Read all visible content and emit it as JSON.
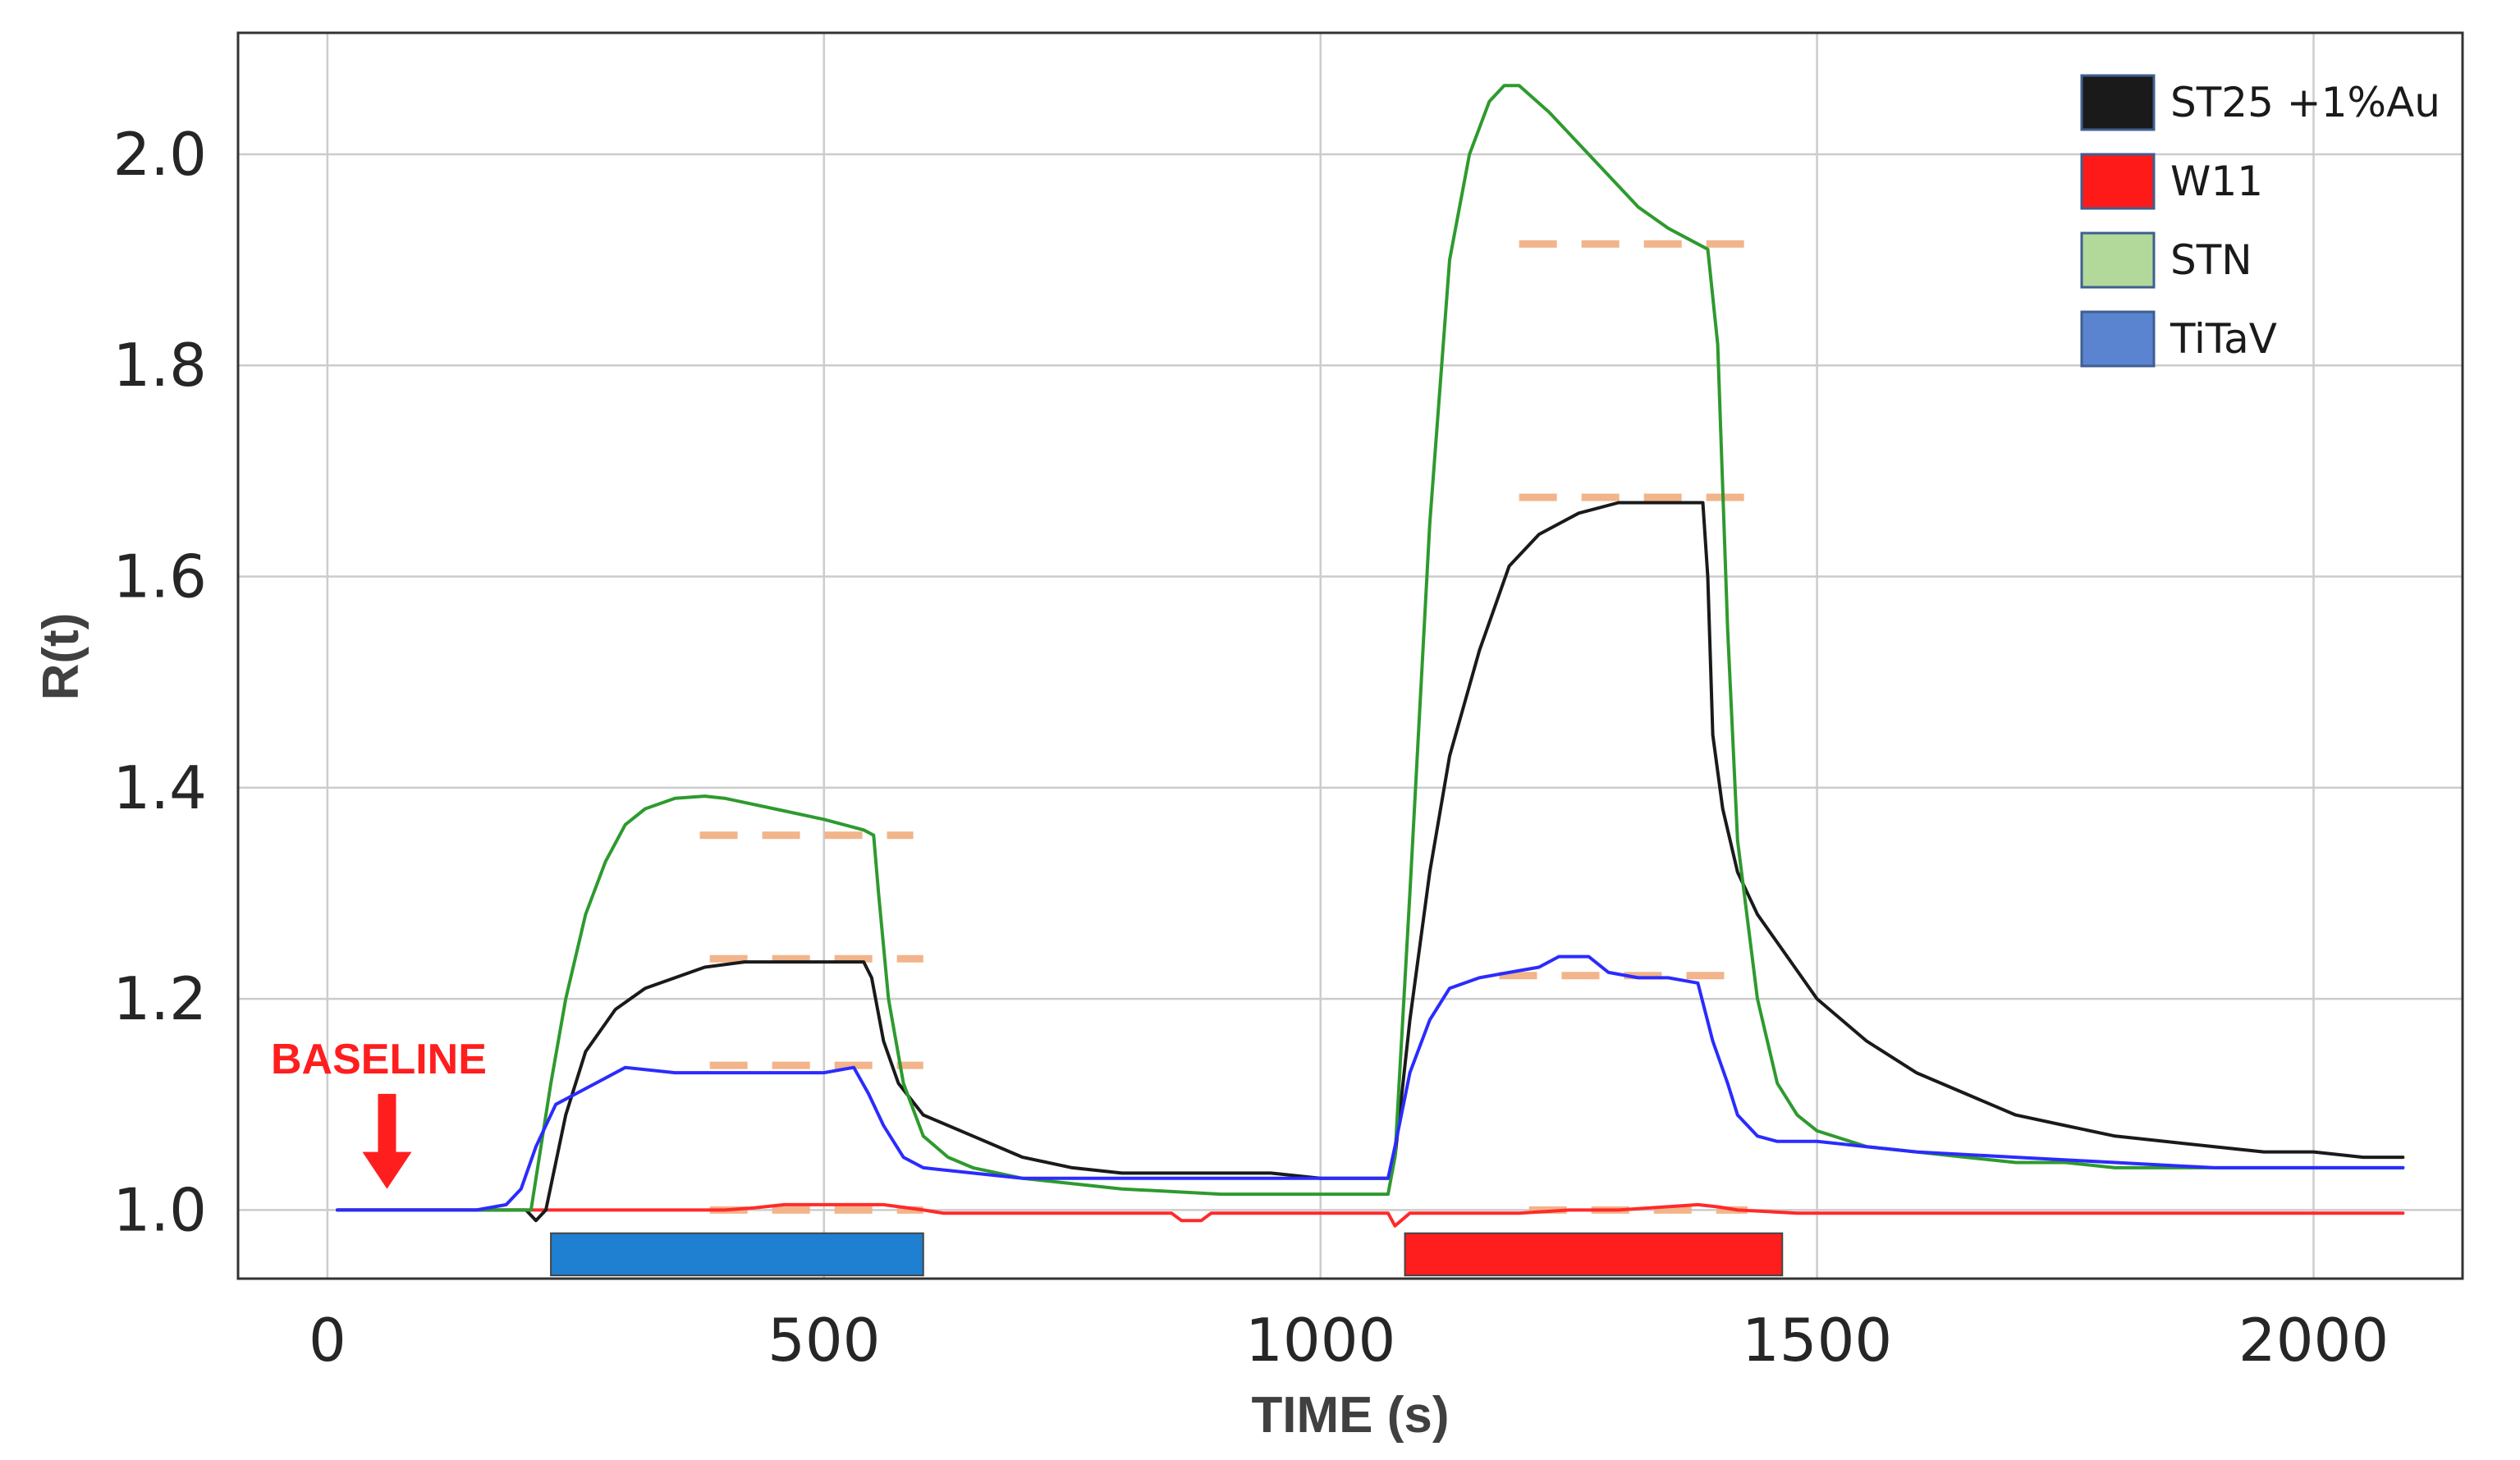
{
  "chart_data": {
    "type": "line",
    "xlabel": "TIME (s)",
    "ylabel": "R(t)",
    "xlim": [
      -90,
      2150
    ],
    "ylim": [
      0.935,
      2.115
    ],
    "xticks": [
      0,
      500,
      1000,
      1500,
      2000
    ],
    "yticks": [
      1.0,
      1.2,
      1.4,
      1.6,
      1.8,
      2.0
    ],
    "ytick_labels": [
      "1.0",
      "1.2",
      "1.4",
      "1.6",
      "1.8",
      "2.0"
    ],
    "grid": true,
    "legend_position": "top-right",
    "series": [
      {
        "name": "ST25 +1%Au",
        "color": "#1a1a1a",
        "swatch": "#1a1a1a",
        "x": [
          10,
          150,
          185,
          200,
          210,
          220,
          240,
          260,
          290,
          320,
          350,
          380,
          420,
          460,
          500,
          540,
          548,
          560,
          575,
          600,
          650,
          700,
          750,
          800,
          850,
          900,
          950,
          1000,
          1050,
          1068,
          1075,
          1090,
          1110,
          1130,
          1160,
          1190,
          1220,
          1260,
          1300,
          1340,
          1370,
          1385,
          1390,
          1395,
          1405,
          1420,
          1440,
          1470,
          1500,
          1550,
          1600,
          1650,
          1700,
          1750,
          1800,
          1850,
          1900,
          1950,
          2000,
          2050,
          2090
        ],
        "y": [
          1.0,
          1.0,
          1.0,
          1.0,
          0.99,
          1.0,
          1.09,
          1.15,
          1.19,
          1.21,
          1.22,
          1.23,
          1.235,
          1.235,
          1.235,
          1.235,
          1.22,
          1.16,
          1.12,
          1.09,
          1.07,
          1.05,
          1.04,
          1.035,
          1.035,
          1.035,
          1.035,
          1.03,
          1.03,
          1.03,
          1.05,
          1.18,
          1.32,
          1.43,
          1.53,
          1.61,
          1.64,
          1.66,
          1.67,
          1.67,
          1.67,
          1.67,
          1.6,
          1.45,
          1.38,
          1.32,
          1.28,
          1.24,
          1.2,
          1.16,
          1.13,
          1.11,
          1.09,
          1.08,
          1.07,
          1.065,
          1.06,
          1.055,
          1.055,
          1.05,
          1.05
        ]
      },
      {
        "name": "W11",
        "color": "#ff2a2a",
        "swatch": "#ff1a1a",
        "x": [
          10,
          200,
          400,
          430,
          460,
          560,
          600,
          620,
          700,
          850,
          860,
          880,
          890,
          1000,
          1068,
          1075,
          1090,
          1100,
          1200,
          1250,
          1300,
          1380,
          1400,
          1420,
          1480,
          1500,
          2090
        ],
        "y": [
          1.0,
          1.0,
          1.0,
          1.002,
          1.005,
          1.005,
          1.0,
          0.997,
          0.997,
          0.997,
          0.99,
          0.99,
          0.997,
          0.997,
          0.997,
          0.985,
          0.997,
          0.997,
          0.997,
          1.0,
          1.0,
          1.005,
          1.003,
          1.0,
          0.997,
          0.997,
          0.997
        ]
      },
      {
        "name": "STN",
        "color": "#2e9a2e",
        "swatch": "#b2d89a",
        "x": [
          10,
          150,
          190,
          205,
          215,
          225,
          240,
          260,
          280,
          300,
          320,
          350,
          380,
          400,
          450,
          500,
          540,
          550,
          555,
          565,
          580,
          600,
          625,
          650,
          700,
          750,
          800,
          900,
          1000,
          1068,
          1075,
          1090,
          1110,
          1130,
          1150,
          1170,
          1185,
          1200,
          1230,
          1260,
          1290,
          1320,
          1350,
          1380,
          1390,
          1400,
          1410,
          1420,
          1440,
          1460,
          1480,
          1500,
          1550,
          1600,
          1650,
          1700,
          1750,
          1800,
          2000,
          2090
        ],
        "y": [
          1.0,
          1.0,
          1.0,
          1.0,
          1.06,
          1.12,
          1.2,
          1.28,
          1.33,
          1.365,
          1.38,
          1.39,
          1.392,
          1.39,
          1.38,
          1.37,
          1.36,
          1.355,
          1.3,
          1.2,
          1.12,
          1.07,
          1.05,
          1.04,
          1.03,
          1.025,
          1.02,
          1.015,
          1.015,
          1.015,
          1.05,
          1.3,
          1.65,
          1.9,
          2.0,
          2.05,
          2.065,
          2.065,
          2.04,
          2.01,
          1.98,
          1.95,
          1.93,
          1.915,
          1.91,
          1.82,
          1.55,
          1.35,
          1.2,
          1.12,
          1.09,
          1.075,
          1.06,
          1.055,
          1.05,
          1.045,
          1.045,
          1.04,
          1.04,
          1.04
        ]
      },
      {
        "name": "TiTaV",
        "color": "#2b2bff",
        "swatch": "#5a84d0",
        "x": [
          10,
          150,
          180,
          195,
          210,
          230,
          250,
          280,
          300,
          350,
          400,
          450,
          500,
          530,
          545,
          560,
          580,
          600,
          650,
          700,
          750,
          800,
          850,
          950,
          1000,
          1068,
          1075,
          1090,
          1110,
          1130,
          1160,
          1190,
          1220,
          1240,
          1270,
          1290,
          1320,
          1350,
          1380,
          1395,
          1410,
          1420,
          1440,
          1460,
          1480,
          1500,
          1550,
          1600,
          1700,
          1800,
          1900,
          2000,
          2090
        ],
        "y": [
          1.0,
          1.0,
          1.005,
          1.02,
          1.06,
          1.1,
          1.11,
          1.125,
          1.135,
          1.13,
          1.13,
          1.13,
          1.13,
          1.135,
          1.11,
          1.08,
          1.05,
          1.04,
          1.035,
          1.03,
          1.03,
          1.03,
          1.03,
          1.03,
          1.03,
          1.03,
          1.06,
          1.13,
          1.18,
          1.21,
          1.22,
          1.225,
          1.23,
          1.24,
          1.24,
          1.225,
          1.22,
          1.22,
          1.215,
          1.16,
          1.12,
          1.09,
          1.07,
          1.065,
          1.065,
          1.065,
          1.06,
          1.055,
          1.05,
          1.045,
          1.04,
          1.04,
          1.04
        ]
      }
    ],
    "reference_lines": [
      {
        "x": [
          375,
          590
        ],
        "y": 1.355
      },
      {
        "x": [
          385,
          600
        ],
        "y": 1.238
      },
      {
        "x": [
          385,
          600
        ],
        "y": 1.137
      },
      {
        "x": [
          385,
          600
        ],
        "y": 1.0
      },
      {
        "x": [
          1200,
          1430
        ],
        "y": 1.915
      },
      {
        "x": [
          1200,
          1430
        ],
        "y": 1.675
      },
      {
        "x": [
          1180,
          1410
        ],
        "y": 1.222
      },
      {
        "x": [
          1210,
          1430
        ],
        "y": 1.0
      }
    ],
    "reference_color": "#f2b48a",
    "exposure_bars": [
      {
        "x": [
          225,
          600
        ],
        "y": [
          0.938,
          0.978
        ],
        "color": "#1f7fd0"
      },
      {
        "x": [
          1085,
          1465
        ],
        "y": [
          0.938,
          0.978
        ],
        "color": "#ff1e1e"
      }
    ],
    "annotation": {
      "text": "BASELINE",
      "x": 60,
      "y_text": 1.145,
      "arrow_from": 1.11,
      "arrow_to": 1.02,
      "color": "#ff1e1e"
    }
  }
}
